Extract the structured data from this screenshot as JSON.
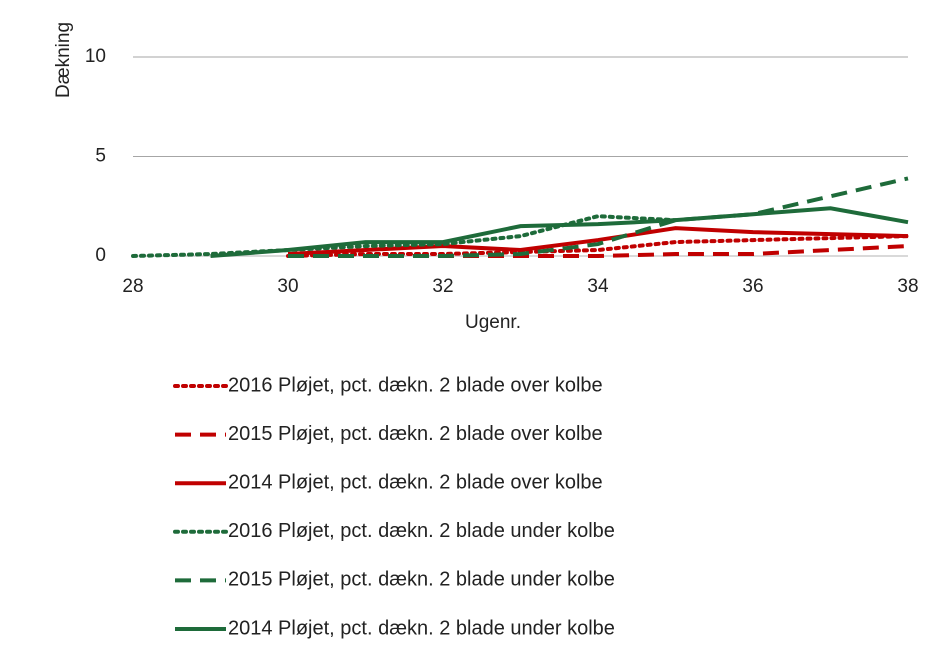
{
  "chart_data": {
    "type": "line",
    "y_label": "Dækning",
    "x_label": "Ugenr.",
    "x": [
      28,
      29,
      30,
      31,
      32,
      33,
      34,
      35,
      36,
      37,
      38
    ],
    "xlim": [
      28,
      38
    ],
    "xticks": [
      28,
      30,
      32,
      34,
      36,
      38
    ],
    "ylim": [
      0,
      10
    ],
    "yticks": [
      0,
      5,
      10
    ],
    "grid": true,
    "series": [
      {
        "name": "2016 Pløjet, pct. dækn. 2 blade over kolbe",
        "color": "#c00000",
        "style": "dotted",
        "values": [
          null,
          null,
          0,
          0.1,
          0.1,
          0.2,
          0.3,
          0.7,
          0.8,
          0.9,
          1.0
        ]
      },
      {
        "name": "2015 Pløjet, pct. dækn. 2 blade over kolbe",
        "color": "#c00000",
        "style": "dashed",
        "values": [
          null,
          null,
          0,
          0,
          0,
          0,
          0,
          0.1,
          0.1,
          0.3,
          0.5
        ]
      },
      {
        "name": "2014 Pløjet, pct. dækn. 2 blade over kolbe",
        "color": "#c00000",
        "style": "solid",
        "values": [
          null,
          null,
          0.1,
          0.3,
          0.5,
          0.3,
          0.8,
          1.4,
          1.2,
          1.1,
          1.0
        ]
      },
      {
        "name": "2016 Pløjet, pct. dækn. 2 blade under kolbe",
        "color": "#1e6b3a",
        "style": "dotted",
        "values": [
          0,
          0.1,
          0.3,
          0.5,
          0.6,
          1.0,
          2.0,
          1.8,
          null,
          null,
          null
        ]
      },
      {
        "name": "2015 Pløjet, pct. dækn. 2 blade under kolbe",
        "color": "#1e6b3a",
        "style": "dashed",
        "values": [
          null,
          null,
          0,
          0,
          0,
          0.1,
          0.6,
          1.8,
          2.1,
          3.0,
          3.9
        ]
      },
      {
        "name": "2014 Pløjet, pct. dækn. 2 blade under kolbe",
        "color": "#1e6b3a",
        "style": "solid",
        "values": [
          null,
          0,
          0.3,
          0.7,
          0.7,
          1.5,
          1.6,
          1.8,
          2.1,
          2.4,
          1.7
        ]
      }
    ]
  }
}
